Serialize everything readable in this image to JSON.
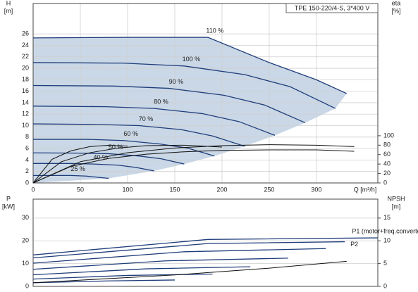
{
  "chart_data": [
    {
      "type": "line",
      "title": "TPE 150-220/4-S, 3*400 V",
      "y_label": "H",
      "y_unit": "[m]",
      "y2_label": "eta",
      "y2_unit": "[%]",
      "x_label": "Q [m³/h]",
      "xlim": [
        0,
        365
      ],
      "xticks": [
        0,
        50,
        100,
        150,
        200,
        250,
        300
      ],
      "ylim": [
        0,
        31.3
      ],
      "yticks": [
        0,
        2,
        4,
        6,
        8,
        10,
        12,
        14,
        16,
        18,
        20,
        22,
        24,
        26
      ],
      "y2lim": [
        0,
        380
      ],
      "y2ticks": [
        0,
        20,
        40,
        60,
        80,
        100
      ],
      "grid": true,
      "series": [
        {
          "name": "110 %",
          "color": "#1f3d7a",
          "x": [
            0,
            100,
            185,
            250,
            300,
            332
          ],
          "values": [
            25.3,
            25.4,
            25.4,
            21,
            18,
            15.6
          ]
        },
        {
          "name": "100 %",
          "color": "#1f3d7a",
          "x": [
            0,
            96,
            160,
            224,
            272,
            320
          ],
          "values": [
            21,
            20.9,
            20.4,
            18.9,
            16.8,
            13
          ]
        },
        {
          "name": "90 %",
          "color": "#1f3d7a",
          "x": [
            0,
            86,
            144,
            202,
            245,
            288
          ],
          "values": [
            17,
            16.9,
            16.5,
            15.3,
            13.6,
            10.5
          ]
        },
        {
          "name": "80 %",
          "color": "#1f3d7a",
          "x": [
            0,
            77,
            128,
            179,
            218,
            256
          ],
          "values": [
            13.4,
            13.3,
            13,
            12.1,
            10.7,
            8.3
          ]
        },
        {
          "name": "70 %",
          "color": "#1f3d7a",
          "x": [
            0,
            67,
            112,
            157,
            190,
            224
          ],
          "values": [
            10.3,
            10.2,
            10,
            9.3,
            8.2,
            6.4
          ]
        },
        {
          "name": "60 %",
          "color": "#1f3d7a",
          "x": [
            0,
            58,
            96,
            134,
            163,
            192
          ],
          "values": [
            7.6,
            7.6,
            7.4,
            6.8,
            6.1,
            4.7
          ]
        },
        {
          "name": "50 %",
          "color": "#1f3d7a",
          "x": [
            0,
            48,
            80,
            112,
            136,
            160
          ],
          "values": [
            5.25,
            5.2,
            5.1,
            4.7,
            4.2,
            3.3
          ]
        },
        {
          "name": "40 %",
          "color": "#1f3d7a",
          "x": [
            0,
            38,
            64,
            90,
            109,
            128
          ],
          "values": [
            3.4,
            3.4,
            3.3,
            3.1,
            2.7,
            2.1
          ]
        },
        {
          "name": "25 %",
          "color": "#1f3d7a",
          "x": [
            0,
            24,
            40,
            56,
            68,
            80
          ],
          "values": [
            1.3,
            1.3,
            1.3,
            1.2,
            1,
            0.8
          ]
        },
        {
          "axis": "y2",
          "color": "#111",
          "x": [
            0,
            50,
            100,
            150,
            200,
            250,
            300,
            340
          ],
          "values": [
            0,
            45,
            64,
            74,
            79,
            81,
            80,
            77
          ]
        },
        {
          "axis": "y2",
          "color": "#111",
          "x": [
            0,
            40,
            80,
            120,
            160,
            200,
            250,
            300,
            340
          ],
          "values": [
            0,
            35,
            52,
            61,
            66,
            69,
            70,
            70,
            67
          ]
        },
        {
          "axis": "y2",
          "color": "#111",
          "x": [
            0,
            30,
            60,
            90,
            120,
            160,
            200
          ],
          "values": [
            0,
            45,
            64,
            74,
            79,
            80,
            76
          ]
        },
        {
          "axis": "y2",
          "color": "#111",
          "x": [
            0,
            20,
            40,
            60,
            80,
            100
          ],
          "values": [
            0,
            50,
            68,
            77,
            80,
            78
          ]
        }
      ]
    },
    {
      "type": "line",
      "y_label": "P",
      "y_unit": "[kW]",
      "y2_label": "NPSH",
      "y2_unit": "[m]",
      "xlim": [
        0,
        365
      ],
      "ylim": [
        0,
        38.3
      ],
      "yticks": [
        0,
        10,
        20,
        30
      ],
      "y2lim": [
        0,
        19.15
      ],
      "y2ticks": [
        0,
        5,
        10,
        15
      ],
      "grid": true,
      "series": [
        {
          "name": "P1 (motor+freq.converter)",
          "color": "#1f3d7a",
          "x": [
            0,
            185,
            365
          ],
          "values": [
            13.8,
            20.6,
            21.3
          ]
        },
        {
          "name": "P2",
          "color": "#1f3d7a",
          "x": [
            0,
            185,
            330
          ],
          "values": [
            12.5,
            18.8,
            19.6
          ]
        },
        {
          "color": "#1f3d7a",
          "x": [
            0,
            160,
            310
          ],
          "values": [
            10.2,
            15.2,
            16.6
          ]
        },
        {
          "color": "#1f3d7a",
          "x": [
            0,
            140,
            270
          ],
          "values": [
            7.5,
            11.2,
            12.4
          ]
        },
        {
          "color": "#1f3d7a",
          "x": [
            0,
            120,
            230
          ],
          "values": [
            5.1,
            7.7,
            8.6
          ]
        },
        {
          "color": "#1f3d7a",
          "x": [
            0,
            100,
            190
          ],
          "values": [
            3.2,
            4.8,
            5.4
          ]
        },
        {
          "color": "#1f3d7a",
          "x": [
            0,
            80,
            150
          ],
          "values": [
            1.6,
            2.4,
            2.8
          ]
        },
        {
          "axis": "y2",
          "color": "#111",
          "x": [
            0,
            150,
            250,
            332
          ],
          "values": [
            0.8,
            2.5,
            4,
            5.5
          ]
        }
      ]
    }
  ]
}
